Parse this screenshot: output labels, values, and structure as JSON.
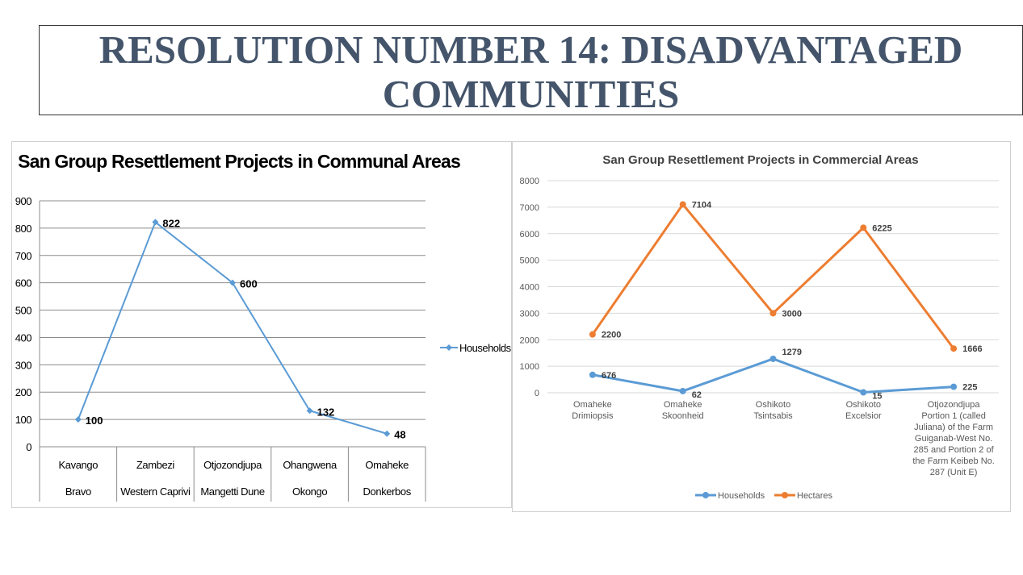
{
  "title": {
    "line1": "RESOLUTION NUMBER 14: DISADVANTAGED",
    "line2": "COMMUNITIES"
  },
  "chart_data": [
    {
      "type": "line",
      "title": "San Group Resettlement Projects in Communal Areas",
      "categories": [
        [
          "Kavango",
          "Bravo"
        ],
        [
          "Zambezi",
          "Western Caprivi"
        ],
        [
          "Otjozondjupa",
          "Mangetti Dune"
        ],
        [
          "Ohangwena",
          "Okongo"
        ],
        [
          "Omaheke",
          "Donkerbos"
        ]
      ],
      "series": [
        {
          "name": "Households",
          "values": [
            100,
            822,
            600,
            132,
            48
          ],
          "color": "#5b9bd5"
        }
      ],
      "yticks": [
        0,
        100,
        200,
        300,
        400,
        500,
        600,
        700,
        800,
        900
      ],
      "ylim": [
        0,
        900
      ],
      "grid": true,
      "legend_position": "right"
    },
    {
      "type": "line",
      "title": "San Group Resettlement Projects in Commercial Areas",
      "categories": [
        [
          "Omaheke",
          "Drimiopsis"
        ],
        [
          "Omaheke",
          "Skoonheid"
        ],
        [
          "Oshikoto",
          "Tsintsabis"
        ],
        [
          "Oshikoto",
          "Excelsior"
        ],
        [
          "Otjozondjupa",
          "Portion 1 (called",
          "Juliana) of the Farm",
          "Guiganab-West No.",
          "285 and Portion 2 of",
          "the Farm Keibeb No.",
          "287 (Unit E)"
        ]
      ],
      "series": [
        {
          "name": "Households",
          "values": [
            676,
            62,
            1279,
            15,
            225
          ],
          "color": "#5b9bd5"
        },
        {
          "name": "Hectares",
          "values": [
            2200,
            7104,
            3000,
            6225,
            1666
          ],
          "color": "#ed7d31"
        }
      ],
      "yticks": [
        0,
        1000,
        2000,
        3000,
        4000,
        5000,
        6000,
        7000,
        8000
      ],
      "ylim": [
        0,
        8000
      ],
      "grid": true,
      "legend_position": "bottom"
    }
  ]
}
